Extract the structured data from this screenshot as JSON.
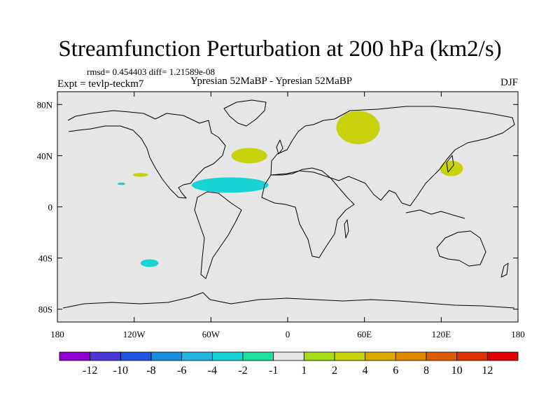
{
  "title": "Streamfunction Perturbation at 200 hPa (km2/s)",
  "stats": "rmsd= 0.454403 diff= 1.21589e-08",
  "experiment": "Expt = tevlp-teckm7",
  "subtitle": "Ypresian  52MaBP - Ypresian  52MaBP",
  "season": "DJF",
  "chart_data": {
    "type": "heatmap",
    "x": {
      "range": [
        -180,
        180
      ],
      "ticks": [
        -180,
        -120,
        -60,
        0,
        60,
        120,
        180
      ],
      "tick_labels": [
        "180",
        "120W",
        "60W",
        "0",
        "60E",
        "120E",
        "180"
      ]
    },
    "y": {
      "range": [
        -90,
        90
      ],
      "ticks": [
        80,
        40,
        0,
        -40,
        -80
      ],
      "tick_labels": [
        "80N",
        "40N",
        "0",
        "40S",
        "80S"
      ]
    },
    "colorbar": {
      "labels": [
        "-12",
        "-10",
        "-8",
        "-6",
        "-4",
        "-2",
        "-1",
        "1",
        "2",
        "4",
        "6",
        "8",
        "10",
        "12"
      ],
      "colors": [
        "#9400d3",
        "#4a35d6",
        "#1f55e0",
        "#1a8de0",
        "#22b5e0",
        "#18d4d4",
        "#1ee0a0",
        "#e6e6e6",
        "#a5dc14",
        "#c8d20a",
        "#dcaa00",
        "#e08700",
        "#e05a00",
        "#e03200",
        "#e00000"
      ]
    },
    "anomalies": [
      {
        "lon": 55,
        "lat": 62,
        "rlon": 17,
        "rlat": 13,
        "level": "2"
      },
      {
        "lon": -30,
        "lat": 40,
        "rlon": 14,
        "rlat": 6,
        "level": "2"
      },
      {
        "lon": 128,
        "lat": 30,
        "rlon": 9,
        "rlat": 6,
        "level": "2"
      },
      {
        "lon": -115,
        "lat": 25,
        "rlon": 6,
        "rlat": 1.5,
        "level": "2"
      },
      {
        "lon": -130,
        "lat": 18,
        "rlon": 3,
        "rlat": 1,
        "level": "-2"
      },
      {
        "lon": -45,
        "lat": 17,
        "rlon": 30,
        "rlat": 6,
        "level": "-2"
      },
      {
        "lon": -108,
        "lat": -44,
        "rlon": 7,
        "rlat": 3,
        "level": "-2"
      }
    ]
  }
}
